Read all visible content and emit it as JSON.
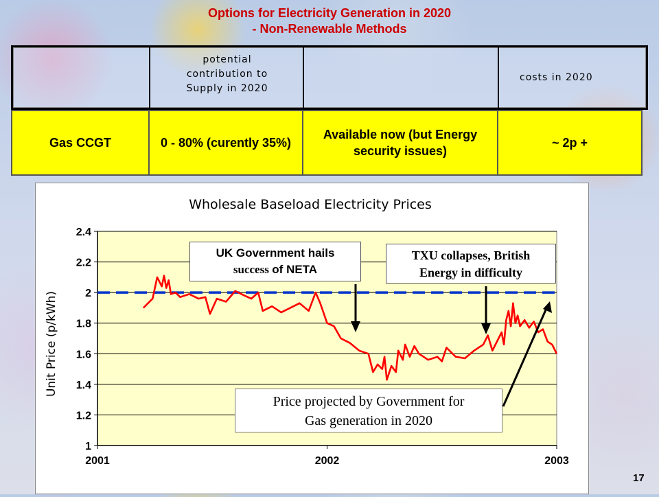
{
  "slide": {
    "title_line1": "Options for Electricity Generation in 2020",
    "title_line2": "- Non-Renewable Methods",
    "page_number": "17"
  },
  "table": {
    "headers": [
      "",
      "potential contribution to Supply in 2020",
      "",
      "costs in 2020"
    ],
    "header_lines": {
      "contribution": [
        "potential",
        "contribution to",
        "Supply in 2020"
      ],
      "costs": "costs in 2020"
    },
    "row": {
      "method": "Gas CCGT",
      "contribution": "0 - 80% (curently 35%)",
      "availability": "Available now (but Energy security issues)",
      "cost": "~ 2p +"
    }
  },
  "annotations": {
    "neta_line1": "UK Government hails",
    "neta_line2a": "success",
    "neta_line2b": "of NETA",
    "txu_line1": "TXU collapses, British",
    "txu_line2": "Energy in difficulty",
    "proj_line1": "Price projected by Government for",
    "proj_line2": "Gas generation in 2020"
  },
  "colors": {
    "title": "#cc0000",
    "row_bg": "#ffff00",
    "plot_bg": "#ffffcc",
    "series_line": "#ff0000",
    "projection_line": "#0033cc"
  },
  "chart_data": {
    "type": "line",
    "title": "Wholesale Baseload Electricity Prices",
    "ylabel": "Unit Price (p/kWh)",
    "xlabel": "",
    "xlim": [
      2001,
      2003
    ],
    "ylim": [
      1,
      2.4
    ],
    "yticks": [
      "1",
      "1.2",
      "1.4",
      "1.6",
      "1.8",
      "2",
      "2.2",
      "2.4"
    ],
    "xticks": [
      "2001",
      "2002",
      "2003"
    ],
    "grid": true,
    "series": [
      {
        "name": "",
        "x": [
          2001.2,
          2001.24,
          2001.26,
          2001.28,
          2001.29,
          2001.3,
          2001.31,
          2001.32,
          2001.34,
          2001.36,
          2001.4,
          2001.44,
          2001.47,
          2001.49,
          2001.52,
          2001.56,
          2001.6,
          2001.64,
          2001.67,
          2001.7,
          2001.72,
          2001.76,
          2001.8,
          2001.84,
          2001.88,
          2001.92,
          2001.95,
          2001.97,
          2002.0,
          2002.03,
          2002.06,
          2002.1,
          2002.14,
          2002.18,
          2002.2,
          2002.22,
          2002.24,
          2002.25,
          2002.26,
          2002.28,
          2002.3,
          2002.31,
          2002.33,
          2002.34,
          2002.36,
          2002.38,
          2002.4,
          2002.44,
          2002.48,
          2002.5,
          2002.52,
          2002.56,
          2002.6,
          2002.64,
          2002.68,
          2002.7,
          2002.72,
          2002.74,
          2002.76,
          2002.77,
          2002.78,
          2002.79,
          2002.8,
          2002.81,
          2002.82,
          2002.83,
          2002.84,
          2002.86,
          2002.88,
          2002.9,
          2002.92,
          2002.94,
          2002.96,
          2002.98,
          2003.0
        ],
        "y": [
          1.9,
          1.96,
          2.1,
          2.04,
          2.11,
          2.03,
          2.08,
          1.99,
          2.0,
          1.97,
          1.99,
          1.96,
          1.97,
          1.86,
          1.96,
          1.94,
          2.01,
          1.98,
          1.96,
          2.0,
          1.88,
          1.91,
          1.87,
          1.9,
          1.93,
          1.88,
          2.0,
          1.93,
          1.8,
          1.78,
          1.7,
          1.67,
          1.62,
          1.6,
          1.48,
          1.53,
          1.5,
          1.58,
          1.43,
          1.52,
          1.48,
          1.62,
          1.56,
          1.66,
          1.58,
          1.65,
          1.6,
          1.56,
          1.58,
          1.55,
          1.64,
          1.58,
          1.57,
          1.62,
          1.66,
          1.72,
          1.62,
          1.68,
          1.74,
          1.66,
          1.82,
          1.88,
          1.78,
          1.93,
          1.8,
          1.85,
          1.78,
          1.82,
          1.77,
          1.81,
          1.74,
          1.76,
          1.68,
          1.66,
          1.6
        ]
      },
      {
        "name": "",
        "x": [
          2001.0,
          2003.0
        ],
        "y": [
          2.0,
          2.0
        ]
      }
    ]
  }
}
